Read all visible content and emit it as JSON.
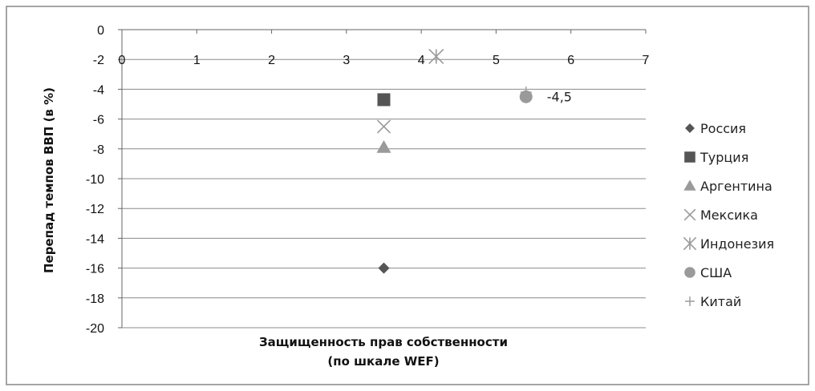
{
  "chart_data": {
    "type": "scatter",
    "title": "",
    "xlabel_lines": [
      "Защищенность прав собственности",
      "(по шкале WEF)"
    ],
    "ylabel": "Перепад темпов ВВП (в %)",
    "xlim": [
      0,
      7
    ],
    "ylim": [
      -20,
      0
    ],
    "x_ticks": [
      0,
      1,
      2,
      3,
      4,
      5,
      6,
      7
    ],
    "y_ticks": [
      0,
      -2,
      -4,
      -6,
      -8,
      -10,
      -12,
      -14,
      -16,
      -18,
      -20
    ],
    "grid": "horizontal",
    "legend_position": "right",
    "colors": {
      "dark": "#555555",
      "light": "#9a9a9a",
      "frame": "#888888",
      "grid": "#8c8c8c",
      "axis": "#666666"
    },
    "series": [
      {
        "name": "Россия",
        "marker": "diamond",
        "color": "#555555",
        "points": [
          {
            "x": 3.5,
            "y": -16
          }
        ]
      },
      {
        "name": "Турция",
        "marker": "square",
        "color": "#555555",
        "points": [
          {
            "x": 3.5,
            "y": -4.7
          }
        ]
      },
      {
        "name": "Аргентина",
        "marker": "triangle",
        "color": "#9a9a9a",
        "points": [
          {
            "x": 3.5,
            "y": -7.9
          }
        ]
      },
      {
        "name": "Мексика",
        "marker": "x",
        "color": "#9a9a9a",
        "points": [
          {
            "x": 3.5,
            "y": -6.5
          }
        ]
      },
      {
        "name": "Индонезия",
        "marker": "star",
        "color": "#9a9a9a",
        "points": [
          {
            "x": 4.2,
            "y": -1.8
          }
        ]
      },
      {
        "name": "США",
        "marker": "circle",
        "color": "#9a9a9a",
        "points": [
          {
            "x": 5.4,
            "y": -4.5,
            "label": "-4,5"
          }
        ]
      },
      {
        "name": "Китай",
        "marker": "plus",
        "color": "#9a9a9a",
        "points": [
          {
            "x": 5.4,
            "y": -4.2
          }
        ]
      }
    ]
  }
}
